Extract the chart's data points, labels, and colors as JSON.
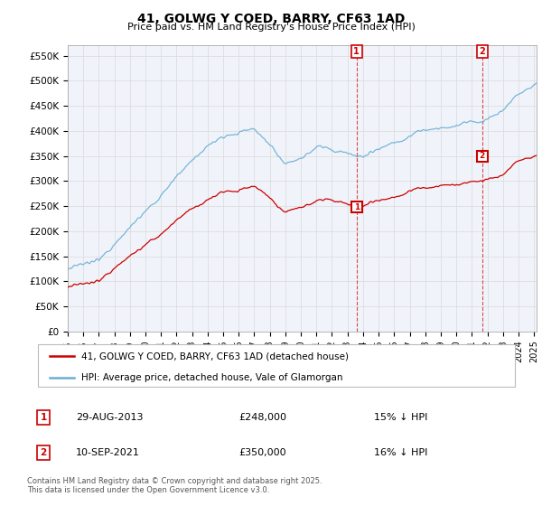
{
  "title": "41, GOLWG Y COED, BARRY, CF63 1AD",
  "subtitle": "Price paid vs. HM Land Registry's House Price Index (HPI)",
  "ylabel_ticks": [
    "£0",
    "£50K",
    "£100K",
    "£150K",
    "£200K",
    "£250K",
    "£300K",
    "£350K",
    "£400K",
    "£450K",
    "£500K",
    "£550K"
  ],
  "ytick_vals": [
    0,
    50000,
    100000,
    150000,
    200000,
    250000,
    300000,
    350000,
    400000,
    450000,
    500000,
    550000
  ],
  "ylim": [
    0,
    570000
  ],
  "hpi_color": "#6baed6",
  "price_color": "#cc0000",
  "sale1_price": 248000,
  "sale2_price": 350000,
  "sale1_date": "29-AUG-2013",
  "sale2_date": "10-SEP-2021",
  "sale1_pct": "15% ↓ HPI",
  "sale2_pct": "16% ↓ HPI",
  "legend_entry1": "41, GOLWG Y COED, BARRY, CF63 1AD (detached house)",
  "legend_entry2": "HPI: Average price, detached house, Vale of Glamorgan",
  "footer": "Contains HM Land Registry data © Crown copyright and database right 2025.\nThis data is licensed under the Open Government Licence v3.0.",
  "grid_color": "#dddddd",
  "face_color": "#f0f4fa"
}
